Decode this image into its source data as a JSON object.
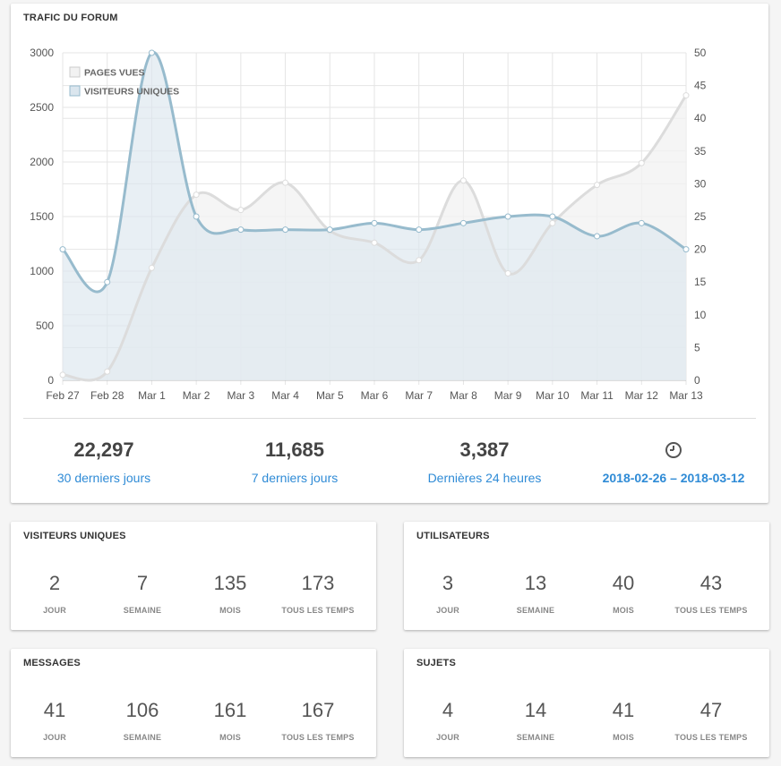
{
  "traffic": {
    "title": "TRAFIC DU FORUM",
    "stats": [
      {
        "value": "22,297",
        "label": "30 derniers jours"
      },
      {
        "value": "11,685",
        "label": "7 derniers jours"
      },
      {
        "value": "3,387",
        "label": "Dernières 24 heures"
      }
    ],
    "range_label": "2018-02-26 – 2018-03-12",
    "range_icon": "clock-icon"
  },
  "chart_data": {
    "type": "area",
    "x": [
      "Feb 27",
      "Feb 28",
      "Mar 1",
      "Mar 2",
      "Mar 3",
      "Mar 4",
      "Mar 5",
      "Mar 6",
      "Mar 7",
      "Mar 8",
      "Mar 9",
      "Mar 10",
      "Mar 11",
      "Mar 12",
      "Mar 13"
    ],
    "series": [
      {
        "name": "PAGES VUES",
        "axis": "left",
        "color": "#dcdcdc",
        "fill": "#f2f2f2",
        "values": [
          50,
          80,
          1030,
          1700,
          1560,
          1810,
          1370,
          1260,
          1100,
          1830,
          980,
          1440,
          1790,
          1990,
          2610
        ]
      },
      {
        "name": "VISITEURS UNIQUES",
        "axis": "right",
        "color": "#97bbcd",
        "fill": "#dbe6ee",
        "values": [
          20,
          15,
          50,
          25,
          23,
          23,
          23,
          24,
          23,
          24,
          25,
          25,
          22,
          24,
          20
        ]
      }
    ],
    "y_left": {
      "ticks": [
        0,
        500,
        1000,
        1500,
        2000,
        2500,
        3000
      ],
      "range": [
        0,
        3000
      ]
    },
    "y_right": {
      "ticks": [
        0,
        5,
        10,
        15,
        20,
        25,
        30,
        35,
        40,
        45,
        50
      ],
      "range": [
        0,
        50
      ]
    },
    "grid": true,
    "legend": "top-left"
  },
  "panels": [
    {
      "title": "VISITEURS UNIQUES",
      "cells": [
        {
          "value": "2",
          "label": "JOUR"
        },
        {
          "value": "7",
          "label": "SEMAINE"
        },
        {
          "value": "135",
          "label": "MOIS"
        },
        {
          "value": "173",
          "label": "TOUS LES TEMPS"
        }
      ]
    },
    {
      "title": "UTILISATEURS",
      "cells": [
        {
          "value": "3",
          "label": "JOUR"
        },
        {
          "value": "13",
          "label": "SEMAINE"
        },
        {
          "value": "40",
          "label": "MOIS"
        },
        {
          "value": "43",
          "label": "TOUS LES TEMPS"
        }
      ]
    },
    {
      "title": "MESSAGES",
      "cells": [
        {
          "value": "41",
          "label": "JOUR"
        },
        {
          "value": "106",
          "label": "SEMAINE"
        },
        {
          "value": "161",
          "label": "MOIS"
        },
        {
          "value": "167",
          "label": "TOUS LES TEMPS"
        }
      ]
    },
    {
      "title": "SUJETS",
      "cells": [
        {
          "value": "4",
          "label": "JOUR"
        },
        {
          "value": "14",
          "label": "SEMAINE"
        },
        {
          "value": "41",
          "label": "MOIS"
        },
        {
          "value": "47",
          "label": "TOUS LES TEMPS"
        }
      ]
    }
  ]
}
